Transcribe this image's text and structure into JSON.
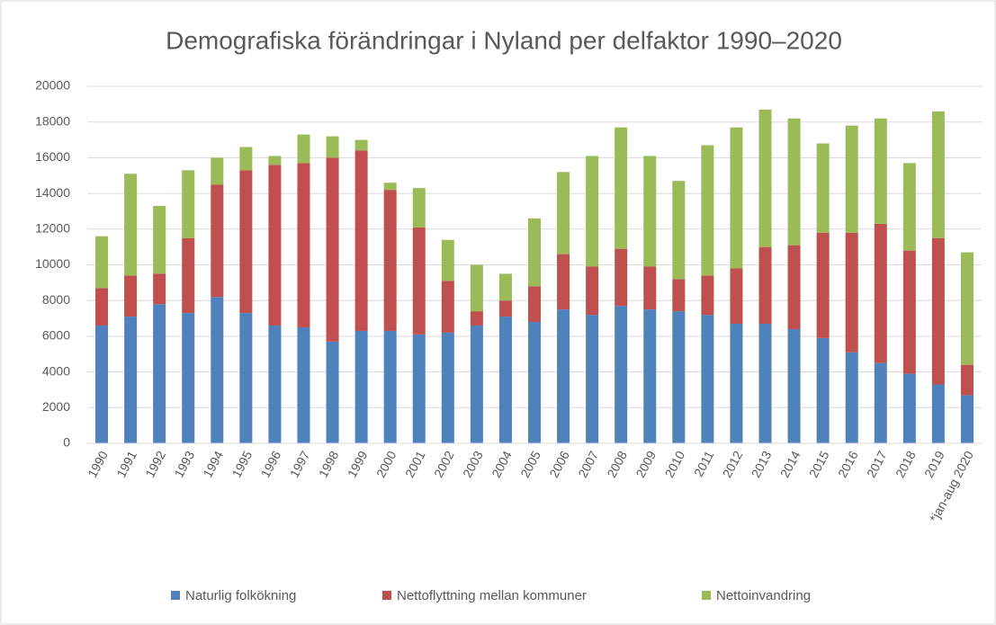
{
  "chart_data": {
    "type": "stacked_bar",
    "title": "Demografiska förändringar i Nyland per delfaktor 1990–2020",
    "categories": [
      "1990",
      "1991",
      "1992",
      "1993",
      "1994",
      "1995",
      "1996",
      "1997",
      "1998",
      "1999",
      "2000",
      "2001",
      "2002",
      "2003",
      "2004",
      "2005",
      "2006",
      "2007",
      "2008",
      "2009",
      "2010",
      "2011",
      "2012",
      "2013",
      "2014",
      "2015",
      "2016",
      "2017",
      "2018",
      "2019",
      "*jan-aug 2020"
    ],
    "series": [
      {
        "name": "Naturlig folkökning",
        "color": "#4f81bd",
        "values": [
          6600,
          7100,
          7800,
          7300,
          8200,
          7300,
          6600,
          6500,
          5700,
          6300,
          6300,
          6100,
          6200,
          6600,
          7100,
          6800,
          7500,
          7200,
          7700,
          7500,
          7400,
          7200,
          6700,
          6700,
          6400,
          5900,
          5100,
          4500,
          3900,
          3300,
          2700
        ]
      },
      {
        "name": "Nettoflyttning mellan kommuner",
        "color": "#c0504d",
        "values": [
          2100,
          2300,
          1700,
          4200,
          6300,
          8000,
          9000,
          9200,
          10300,
          10100,
          7900,
          6000,
          2900,
          800,
          900,
          2000,
          3100,
          2700,
          3200,
          2400,
          1800,
          2200,
          3100,
          4300,
          4700,
          5900,
          6700,
          7800,
          6900,
          8200,
          1700
        ]
      },
      {
        "name": "Nettoinvandring",
        "color": "#9bbb59",
        "values": [
          2900,
          5700,
          3800,
          3800,
          1500,
          1300,
          500,
          1600,
          1200,
          600,
          400,
          2200,
          2300,
          2600,
          1500,
          3800,
          4600,
          6200,
          6800,
          6200,
          5500,
          7300,
          7900,
          7700,
          7100,
          5000,
          6000,
          5900,
          4900,
          7100,
          6300
        ]
      }
    ],
    "ylim": [
      0,
      20000
    ],
    "yticks": [
      0,
      2000,
      4000,
      6000,
      8000,
      10000,
      12000,
      14000,
      16000,
      18000,
      20000
    ],
    "grid": true,
    "legend": "bottom"
  }
}
